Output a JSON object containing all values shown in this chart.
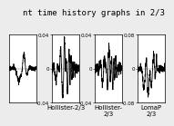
{
  "title": "nt time history graphs in 2/3",
  "title_fontsize": 6.5,
  "panels": [
    {
      "label": "",
      "ylim": [
        -0.06,
        0.06
      ],
      "yticks": [],
      "ytick_labels": [],
      "partial_left": true,
      "partial_right": false
    },
    {
      "label": "Hollister-2/3",
      "ylim": [
        -0.04,
        0.04
      ],
      "yticks": [
        -0.04,
        0,
        0.04
      ],
      "ytick_labels": [
        "-0.04",
        "0",
        "0.04"
      ],
      "partial_left": false,
      "partial_right": false
    },
    {
      "label": "Hollister-\n2/3",
      "ylim": [
        -0.04,
        0.04
      ],
      "yticks": [
        -0.04,
        0,
        0.04
      ],
      "ytick_labels": [
        "-0.04",
        "0",
        "0.04"
      ],
      "partial_left": false,
      "partial_right": false
    },
    {
      "label": "LomaP\n2/3",
      "ylim": [
        -0.08,
        0.08
      ],
      "yticks": [
        -0.08,
        0,
        0.08
      ],
      "ytick_labels": [
        "-0.08",
        "0",
        "0.08"
      ],
      "partial_left": false,
      "partial_right": true
    }
  ],
  "background_color": "#ececec",
  "waveform_color": "#000000",
  "label_fontsize": 5.0,
  "tick_fontsize": 4.0
}
